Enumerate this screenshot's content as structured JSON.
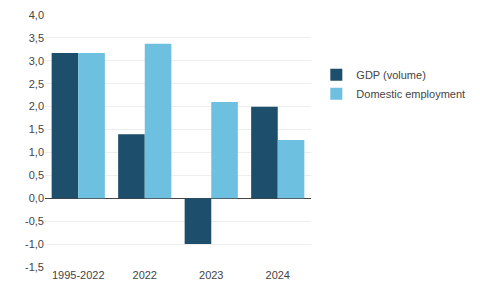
{
  "chart_data": {
    "type": "bar",
    "categories": [
      "1995-2022",
      "2022",
      "2023",
      "2024"
    ],
    "series": [
      {
        "name": "GDP (volume)",
        "color": "#1d4e6b",
        "values": [
          3.17,
          1.4,
          -1.0,
          2.0
        ]
      },
      {
        "name": "Domestic employment",
        "color": "#6dc0e0",
        "values": [
          3.17,
          3.37,
          2.1,
          1.27
        ]
      }
    ],
    "ylim": [
      -1.5,
      4.0
    ],
    "yticks": [
      {
        "value": -1.5,
        "label": "-1,5"
      },
      {
        "value": -1.0,
        "label": "-1,0"
      },
      {
        "value": -0.5,
        "label": "-0,5"
      },
      {
        "value": 0.0,
        "label": "0,0"
      },
      {
        "value": 0.5,
        "label": "0,5"
      },
      {
        "value": 1.0,
        "label": "1,0"
      },
      {
        "value": 1.5,
        "label": "1,5"
      },
      {
        "value": 2.0,
        "label": "2,0"
      },
      {
        "value": 2.5,
        "label": "2,5"
      },
      {
        "value": 3.0,
        "label": "3,0"
      },
      {
        "value": 3.5,
        "label": "3,5"
      },
      {
        "value": 4.0,
        "label": "4,0"
      }
    ],
    "grid": true,
    "legend": "right"
  }
}
